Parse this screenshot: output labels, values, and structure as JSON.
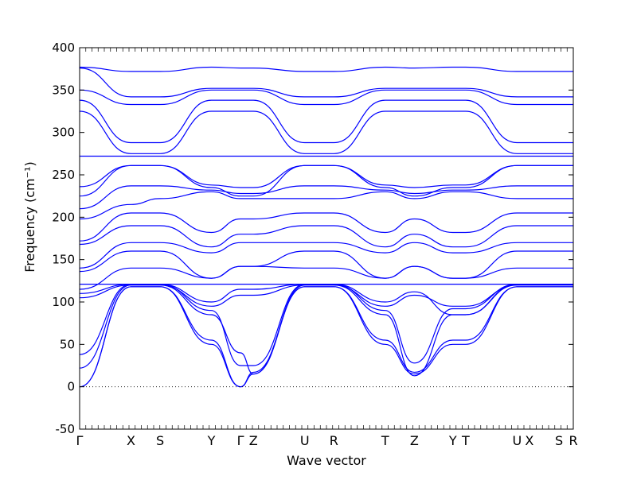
{
  "chart_data": {
    "type": "line",
    "title": "",
    "xlabel": "Wave vector",
    "ylabel": "Frequency (cm⁻¹)",
    "ylim": [
      -50,
      400
    ],
    "yticks": [
      -50,
      0,
      50,
      100,
      150,
      200,
      250,
      300,
      350,
      400
    ],
    "zero_line": {
      "y": 0,
      "style": "dotted"
    },
    "grid": false,
    "legend": "none",
    "line_color": "#0000ff",
    "x_range": [
      0,
      10.0
    ],
    "kpoints": [
      {
        "label": "Γ",
        "x": 0.0
      },
      {
        "label": "X",
        "x": 1.04
      },
      {
        "label": "S",
        "x": 1.63
      },
      {
        "label": "Y",
        "x": 2.67
      },
      {
        "label": "Γ",
        "x": 3.26
      },
      {
        "label": "Z",
        "x": 3.52
      },
      {
        "label": "U",
        "x": 4.56
      },
      {
        "label": "R",
        "x": 5.15
      },
      {
        "label": "T",
        "x": 6.19
      },
      {
        "label": "Z",
        "x": 6.78
      },
      {
        "label": "Y",
        "x": 7.56
      },
      {
        "label": "T",
        "x": 7.82
      },
      {
        "label": "U",
        "x": 8.86
      },
      {
        "label": "X",
        "x": 9.11
      },
      {
        "label": "S",
        "x": 9.71
      },
      {
        "label": "R",
        "x": 10.0
      }
    ],
    "series": [
      {
        "x": [
          0,
          1.04,
          1.63,
          2.67,
          3.26,
          3.52,
          4.56,
          5.15,
          6.19,
          6.78,
          7.56,
          7.82,
          8.86,
          9.11,
          9.71,
          10.0
        ],
        "values": [
          0,
          118,
          118,
          50,
          0,
          15,
          118,
          118,
          50,
          15,
          50,
          50,
          118,
          118,
          118,
          118
        ]
      },
      {
        "x": [
          0,
          1.04,
          1.63,
          2.67,
          3.26,
          3.52,
          4.56,
          5.15,
          6.19,
          6.78,
          7.56,
          7.82,
          8.86,
          9.11,
          9.71,
          10.0
        ],
        "values": [
          0,
          118,
          118,
          55,
          0,
          17,
          118,
          118,
          55,
          17,
          55,
          55,
          118,
          118,
          118,
          118
        ]
      },
      {
        "x": [
          0,
          1.04,
          1.63,
          2.67,
          3.26,
          3.52,
          4.56,
          5.15,
          6.19,
          6.78,
          7.56,
          7.82,
          8.86,
          9.11,
          9.71,
          10.0
        ],
        "values": [
          22,
          120,
          120,
          85,
          40,
          15,
          120,
          120,
          85,
          13,
          85,
          85,
          120,
          120,
          120,
          120
        ]
      },
      {
        "x": [
          0,
          1.04,
          1.63,
          2.67,
          3.26,
          3.52,
          4.56,
          5.15,
          6.19,
          6.78,
          7.56,
          7.82,
          8.86,
          9.11,
          9.71,
          10.0
        ],
        "values": [
          38,
          121,
          121,
          90,
          25,
          25,
          121,
          121,
          90,
          28,
          92,
          92,
          121,
          121,
          121,
          121
        ]
      },
      {
        "x": [
          0,
          1.04,
          1.63,
          2.67,
          3.26,
          3.52,
          4.56,
          5.15,
          6.19,
          6.78,
          7.56,
          7.82,
          8.86,
          9.11,
          9.71,
          10.0
        ],
        "values": [
          105,
          120,
          120,
          95,
          108,
          108,
          120,
          120,
          95,
          108,
          95,
          95,
          120,
          120,
          120,
          120
        ]
      },
      {
        "x": [
          0,
          1.04,
          1.63,
          2.67,
          3.26,
          3.52,
          4.56,
          5.15,
          6.19,
          6.78,
          7.56,
          7.82,
          8.86,
          9.11,
          9.71,
          10.0
        ],
        "values": [
          110,
          121,
          121,
          100,
          115,
          115,
          121,
          121,
          100,
          112,
          85,
          85,
          121,
          121,
          121,
          121
        ]
      },
      {
        "x": [
          0,
          1.04,
          1.63,
          2.67,
          3.26,
          3.52,
          4.56,
          5.15,
          6.19,
          6.78,
          7.56,
          7.82,
          8.86,
          9.11,
          9.71,
          10.0
        ],
        "values": [
          121,
          121,
          121,
          121,
          121,
          121,
          121,
          121,
          121,
          121,
          121,
          121,
          121,
          121,
          121,
          121
        ]
      },
      {
        "x": [
          0,
          1.04,
          1.63,
          2.67,
          3.26,
          3.52,
          4.56,
          5.15,
          6.19,
          6.78,
          7.56,
          7.82,
          8.86,
          9.11,
          9.71,
          10.0
        ],
        "values": [
          115,
          140,
          140,
          128,
          142,
          142,
          140,
          140,
          128,
          142,
          128,
          128,
          140,
          140,
          140,
          140
        ]
      },
      {
        "x": [
          0,
          1.04,
          1.63,
          2.67,
          3.26,
          3.52,
          4.56,
          5.15,
          6.19,
          6.78,
          7.56,
          7.82,
          8.86,
          9.11,
          9.71,
          10.0
        ],
        "values": [
          136,
          160,
          160,
          128,
          142,
          142,
          160,
          160,
          128,
          142,
          128,
          128,
          160,
          160,
          160,
          160
        ]
      },
      {
        "x": [
          0,
          1.04,
          1.63,
          2.67,
          3.26,
          3.52,
          4.56,
          5.15,
          6.19,
          6.78,
          7.56,
          7.82,
          8.86,
          9.11,
          9.71,
          10.0
        ],
        "values": [
          140,
          170,
          170,
          158,
          170,
          170,
          170,
          170,
          158,
          170,
          158,
          158,
          170,
          170,
          170,
          170
        ]
      },
      {
        "x": [
          0,
          1.04,
          1.63,
          2.67,
          3.26,
          3.52,
          4.56,
          5.15,
          6.19,
          6.78,
          7.56,
          7.82,
          8.86,
          9.11,
          9.71,
          10.0
        ],
        "values": [
          168,
          190,
          190,
          165,
          180,
          180,
          190,
          190,
          165,
          180,
          165,
          165,
          190,
          190,
          190,
          190
        ]
      },
      {
        "x": [
          0,
          1.04,
          1.63,
          2.67,
          3.26,
          3.52,
          4.56,
          5.15,
          6.19,
          6.78,
          7.56,
          7.82,
          8.86,
          9.11,
          9.71,
          10.0
        ],
        "values": [
          172,
          205,
          205,
          182,
          198,
          198,
          205,
          205,
          182,
          198,
          182,
          182,
          205,
          205,
          205,
          205
        ]
      },
      {
        "x": [
          0,
          1.04,
          1.63,
          2.67,
          3.26,
          3.52,
          4.56,
          5.15,
          6.19,
          6.78,
          7.56,
          7.82,
          8.86,
          9.11,
          9.71,
          10.0
        ],
        "values": [
          198,
          215,
          222,
          230,
          222,
          222,
          222,
          222,
          230,
          222,
          230,
          230,
          222,
          222,
          222,
          222
        ]
      },
      {
        "x": [
          0,
          1.04,
          1.63,
          2.67,
          3.26,
          3.52,
          4.56,
          5.15,
          6.19,
          6.78,
          7.56,
          7.82,
          8.86,
          9.11,
          9.71,
          10.0
        ],
        "values": [
          210,
          237,
          237,
          232,
          228,
          228,
          237,
          237,
          232,
          228,
          232,
          232,
          237,
          237,
          237,
          237
        ]
      },
      {
        "x": [
          0,
          1.04,
          1.63,
          2.67,
          3.26,
          3.52,
          4.56,
          5.15,
          6.19,
          6.78,
          7.56,
          7.82,
          8.86,
          9.11,
          9.71,
          10.0
        ],
        "values": [
          225,
          261,
          261,
          235,
          225,
          225,
          261,
          261,
          235,
          225,
          235,
          235,
          261,
          261,
          261,
          261
        ]
      },
      {
        "x": [
          0,
          1.04,
          1.63,
          2.67,
          3.26,
          3.52,
          4.56,
          5.15,
          6.19,
          6.78,
          7.56,
          7.82,
          8.86,
          9.11,
          9.71,
          10.0
        ],
        "values": [
          236,
          261,
          261,
          238,
          235,
          235,
          261,
          261,
          238,
          235,
          238,
          238,
          261,
          261,
          261,
          261
        ]
      },
      {
        "x": [
          0,
          1.04,
          1.63,
          2.67,
          3.26,
          3.52,
          4.56,
          5.15,
          6.19,
          6.78,
          7.56,
          7.82,
          8.86,
          9.11,
          9.71,
          10.0
        ],
        "values": [
          272,
          272,
          272,
          272,
          272,
          272,
          272,
          272,
          272,
          272,
          272,
          272,
          272,
          272,
          272,
          272
        ]
      },
      {
        "x": [
          0,
          1.04,
          1.63,
          2.67,
          3.26,
          3.52,
          4.56,
          5.15,
          6.19,
          6.78,
          7.56,
          7.82,
          8.86,
          9.11,
          9.71,
          10.0
        ],
        "values": [
          325,
          275,
          275,
          325,
          325,
          325,
          275,
          275,
          325,
          325,
          325,
          325,
          275,
          275,
          275,
          275
        ]
      },
      {
        "x": [
          0,
          1.04,
          1.63,
          2.67,
          3.26,
          3.52,
          4.56,
          5.15,
          6.19,
          6.78,
          7.56,
          7.82,
          8.86,
          9.11,
          9.71,
          10.0
        ],
        "values": [
          338,
          288,
          288,
          338,
          338,
          338,
          288,
          288,
          338,
          338,
          338,
          338,
          288,
          288,
          288,
          288
        ]
      },
      {
        "x": [
          0,
          1.04,
          1.63,
          2.67,
          3.26,
          3.52,
          4.56,
          5.15,
          6.19,
          6.78,
          7.56,
          7.82,
          8.86,
          9.11,
          9.71,
          10.0
        ],
        "values": [
          350,
          333,
          333,
          350,
          350,
          350,
          333,
          333,
          350,
          350,
          350,
          350,
          333,
          333,
          333,
          333
        ]
      },
      {
        "x": [
          0,
          1.04,
          1.63,
          2.67,
          3.26,
          3.52,
          4.56,
          5.15,
          6.19,
          6.78,
          7.56,
          7.82,
          8.86,
          9.11,
          9.71,
          10.0
        ],
        "values": [
          376,
          342,
          342,
          352,
          352,
          352,
          342,
          342,
          352,
          352,
          352,
          352,
          342,
          342,
          342,
          342
        ]
      },
      {
        "x": [
          0,
          1.04,
          1.63,
          2.67,
          3.26,
          3.52,
          4.56,
          5.15,
          6.19,
          6.78,
          7.56,
          7.82,
          8.86,
          9.11,
          9.71,
          10.0
        ],
        "values": [
          377,
          372,
          372,
          377,
          376,
          376,
          372,
          372,
          377,
          376,
          377,
          377,
          372,
          372,
          372,
          372
        ]
      }
    ]
  }
}
